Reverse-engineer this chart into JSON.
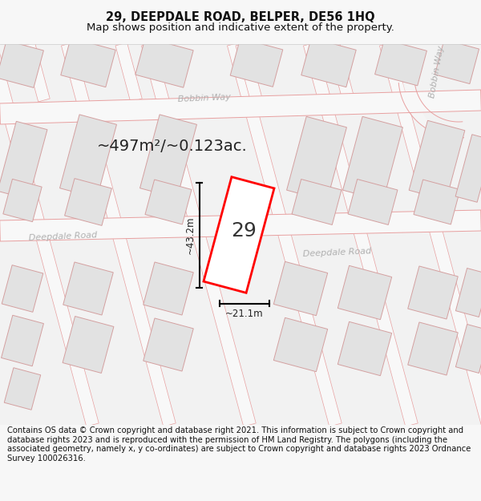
{
  "title_line1": "29, DEEPDALE ROAD, BELPER, DE56 1HQ",
  "title_line2": "Map shows position and indicative extent of the property.",
  "area_label": "~497m²/~0.123ac.",
  "property_number": "29",
  "dim_vertical": "~43.2m",
  "dim_horizontal": "~21.1m",
  "street_label_dr_left": "Deepdale Road",
  "street_label_dr_right": "Deepdale Road",
  "street_label_bw_center": "Bobbin Way",
  "street_label_bw_right": "Bobbin Way",
  "footer_text": "Contains OS data © Crown copyright and database right 2021. This information is subject to Crown copyright and database rights 2023 and is reproduced with the permission of HM Land Registry. The polygons (including the associated geometry, namely x, y co-ordinates) are subject to Crown copyright and database rights 2023 Ordnance Survey 100026316.",
  "bg_color": "#f7f7f7",
  "map_bg": "#f0f0f0",
  "road_fill": "#f5f5f5",
  "road_stroke": "#e8a0a0",
  "property_stroke": "#ff0000",
  "property_fill": "#ffffff",
  "block_fill": "#e2e2e2",
  "block_stroke": "#d4a0a0",
  "title_fontsize": 10.5,
  "subtitle_fontsize": 9.5,
  "footer_fontsize": 7.2,
  "area_fontsize": 14,
  "number_fontsize": 18,
  "dim_fontsize": 8.5,
  "street_fontsize": 8
}
